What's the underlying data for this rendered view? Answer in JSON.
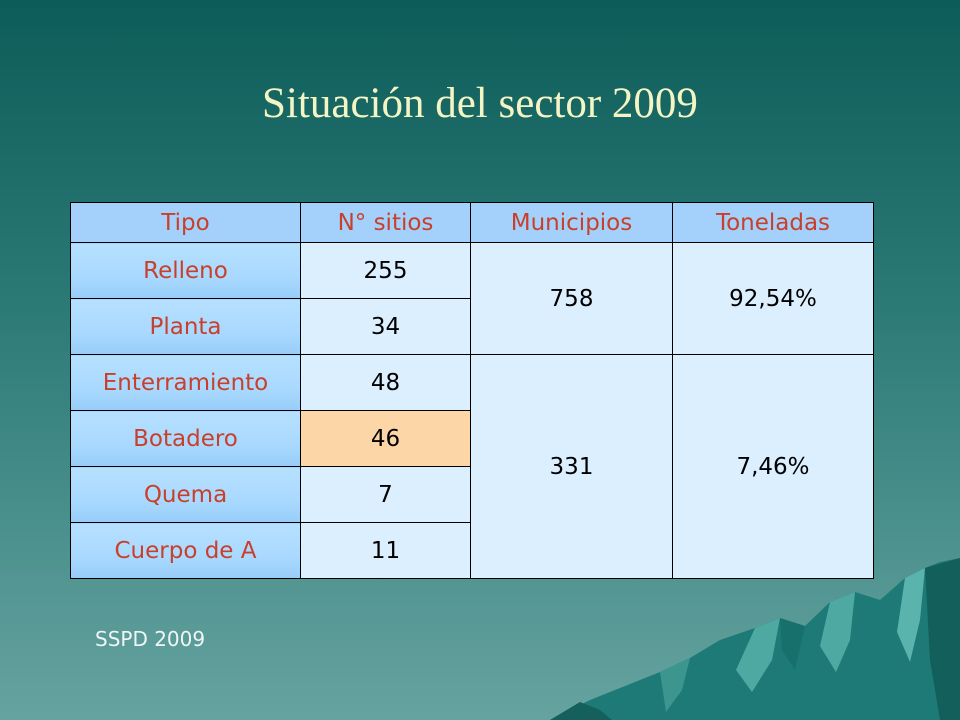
{
  "slide": {
    "title": "Situación del sector 2009",
    "footnote": "SSPD 2009"
  },
  "table": {
    "headers": [
      "Tipo",
      "N° sitios",
      "Municipios",
      "Toneladas"
    ],
    "rows": [
      {
        "tipo": "Relleno",
        "sitios": "255"
      },
      {
        "tipo": "Planta",
        "sitios": "34"
      },
      {
        "tipo": "Enterramiento",
        "sitios": "48"
      },
      {
        "tipo": "Botadero",
        "sitios": "46"
      },
      {
        "tipo": "Quema",
        "sitios": "7"
      },
      {
        "tipo": "Cuerpo de A",
        "sitios": "11"
      }
    ],
    "groups": [
      {
        "municipios": "758",
        "toneladas": "92,54%"
      },
      {
        "municipios": "331",
        "toneladas": "7,46%"
      }
    ]
  },
  "colors": {
    "bg-top": "#0c5c59",
    "bg-mid": "#2e7c78",
    "bg-bottom": "#66a3a0",
    "title": "#f4f4c4",
    "header-bg": "#a3d1fc",
    "label-text": "#c9402a",
    "label-bg": "#a9d9ff",
    "cell-bg": "#dcefff",
    "highlight": "#fcd6a6",
    "footnote": "#eef6f6"
  }
}
